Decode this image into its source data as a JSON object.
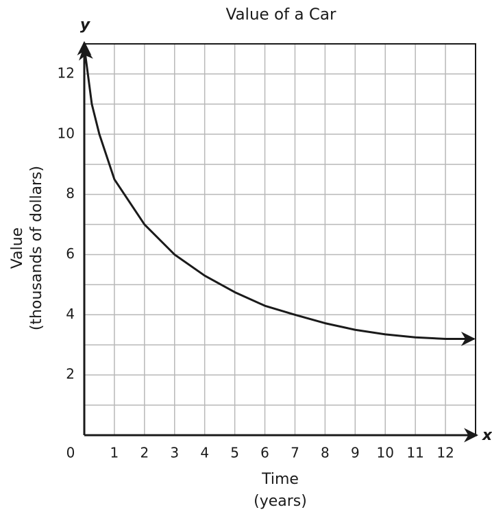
{
  "chart_data": {
    "type": "line",
    "title": "Value of a Car",
    "x_label": [
      "Time",
      "(years)"
    ],
    "y_label": [
      "Value",
      "(thousands of dollars)"
    ],
    "x_axis_symbol": "x",
    "y_axis_symbol": "y",
    "x": [
      0,
      0.25,
      0.5,
      1,
      2,
      3,
      4,
      5,
      6,
      7,
      8,
      9,
      10,
      11,
      12,
      12.95
    ],
    "series": [
      {
        "name": "Value",
        "color": "#1a1a1a",
        "values": [
          12.9,
          11.0,
          10.0,
          8.5,
          7.0,
          6.0,
          5.3,
          4.75,
          4.3,
          4.0,
          3.72,
          3.5,
          3.35,
          3.25,
          3.2,
          3.2
        ]
      }
    ],
    "xlim": [
      0,
      13
    ],
    "ylim": [
      0,
      13
    ],
    "xticks": [
      0,
      1,
      2,
      3,
      4,
      5,
      6,
      7,
      8,
      9,
      10,
      11,
      12
    ],
    "yticks": [
      2,
      4,
      6,
      8,
      10,
      12
    ],
    "grid": true,
    "grid_step": 1
  }
}
